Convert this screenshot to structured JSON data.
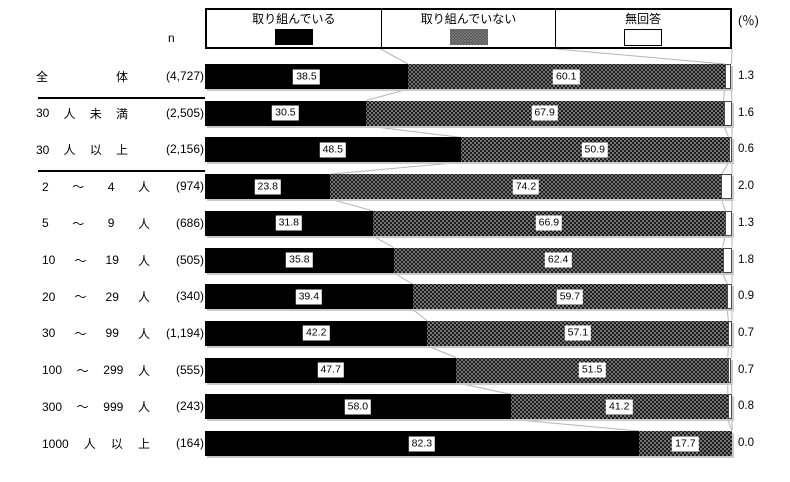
{
  "legend": {
    "items": [
      {
        "label": "取り組んでいる",
        "swatch": "filled"
      },
      {
        "label": "取り組んでいない",
        "swatch": "dotted"
      },
      {
        "label": "無回答",
        "swatch": "empty"
      }
    ],
    "unit": "(％)"
  },
  "n_header": "n",
  "rows": [
    {
      "tokens": [
        "全",
        "体"
      ],
      "n": "(4,727)",
      "group": "summary",
      "values": [
        "38.5",
        "60.1",
        "1.3"
      ],
      "divider_after": true
    },
    {
      "tokens": [
        "30",
        "人",
        "未",
        "満"
      ],
      "n": "(2,505)",
      "group": "summary",
      "values": [
        "30.5",
        "67.9",
        "1.6"
      ],
      "divider_after": false
    },
    {
      "tokens": [
        "30",
        "人",
        "以",
        "上"
      ],
      "n": "(2,156)",
      "group": "summary",
      "values": [
        "48.5",
        "50.9",
        "0.6"
      ],
      "divider_after": true
    },
    {
      "tokens": [
        "2",
        "～",
        "4",
        "人"
      ],
      "n": "(974)",
      "group": "detail",
      "values": [
        "23.8",
        "74.2",
        "2.0"
      ],
      "divider_after": false
    },
    {
      "tokens": [
        "5",
        "～",
        "9",
        "人"
      ],
      "n": "(686)",
      "group": "detail",
      "values": [
        "31.8",
        "66.9",
        "1.3"
      ],
      "divider_after": false
    },
    {
      "tokens": [
        "10",
        "～",
        "19",
        "人"
      ],
      "n": "(505)",
      "group": "detail",
      "values": [
        "35.8",
        "62.4",
        "1.8"
      ],
      "divider_after": false
    },
    {
      "tokens": [
        "20",
        "～",
        "29",
        "人"
      ],
      "n": "(340)",
      "group": "detail",
      "values": [
        "39.4",
        "59.7",
        "0.9"
      ],
      "divider_after": false
    },
    {
      "tokens": [
        "30",
        "～",
        "99",
        "人"
      ],
      "n": "(1,194)",
      "group": "detail",
      "values": [
        "42.2",
        "57.1",
        "0.7"
      ],
      "divider_after": false
    },
    {
      "tokens": [
        "100",
        "～",
        "299",
        "人"
      ],
      "n": "(555)",
      "group": "detail",
      "values": [
        "47.7",
        "51.5",
        "0.7"
      ],
      "divider_after": false
    },
    {
      "tokens": [
        "300",
        "～",
        "999",
        "人"
      ],
      "n": "(243)",
      "group": "detail",
      "values": [
        "58.0",
        "41.2",
        "0.8"
      ],
      "divider_after": false
    },
    {
      "tokens": [
        "1000",
        "人",
        "以",
        "上"
      ],
      "n": "(164)",
      "group": "detail",
      "values": [
        "82.3",
        "17.7",
        "0.0"
      ],
      "divider_after": false
    }
  ],
  "chart_data": {
    "type": "bar",
    "orientation": "horizontal-stacked",
    "unit": "%",
    "xlim": [
      0,
      100
    ],
    "legend_position": "top",
    "categories": [
      "全体",
      "30人未満",
      "30人以上",
      "2～4人",
      "5～9人",
      "10～19人",
      "20～29人",
      "30～99人",
      "100～299人",
      "300～999人",
      "1000人以上"
    ],
    "n_values": [
      4727,
      2505,
      2156,
      974,
      686,
      505,
      340,
      1194,
      555,
      243,
      164
    ],
    "series": [
      {
        "name": "取り組んでいる",
        "values": [
          38.5,
          30.5,
          48.5,
          23.8,
          31.8,
          35.8,
          39.4,
          42.2,
          47.7,
          58.0,
          82.3
        ]
      },
      {
        "name": "取り組んでいない",
        "values": [
          60.1,
          67.9,
          50.9,
          74.2,
          66.9,
          62.4,
          59.7,
          57.1,
          51.5,
          41.2,
          17.7
        ]
      },
      {
        "name": "無回答",
        "values": [
          1.3,
          1.6,
          0.6,
          2.0,
          1.3,
          1.8,
          0.9,
          0.7,
          0.7,
          0.8,
          0.0
        ]
      }
    ],
    "colors": {
      "engaged": "#000000",
      "not_engaged": "#2b2b2b dotted pattern",
      "no_answer": "#ffffff"
    },
    "connector_line_color": "#b5b5b5"
  }
}
